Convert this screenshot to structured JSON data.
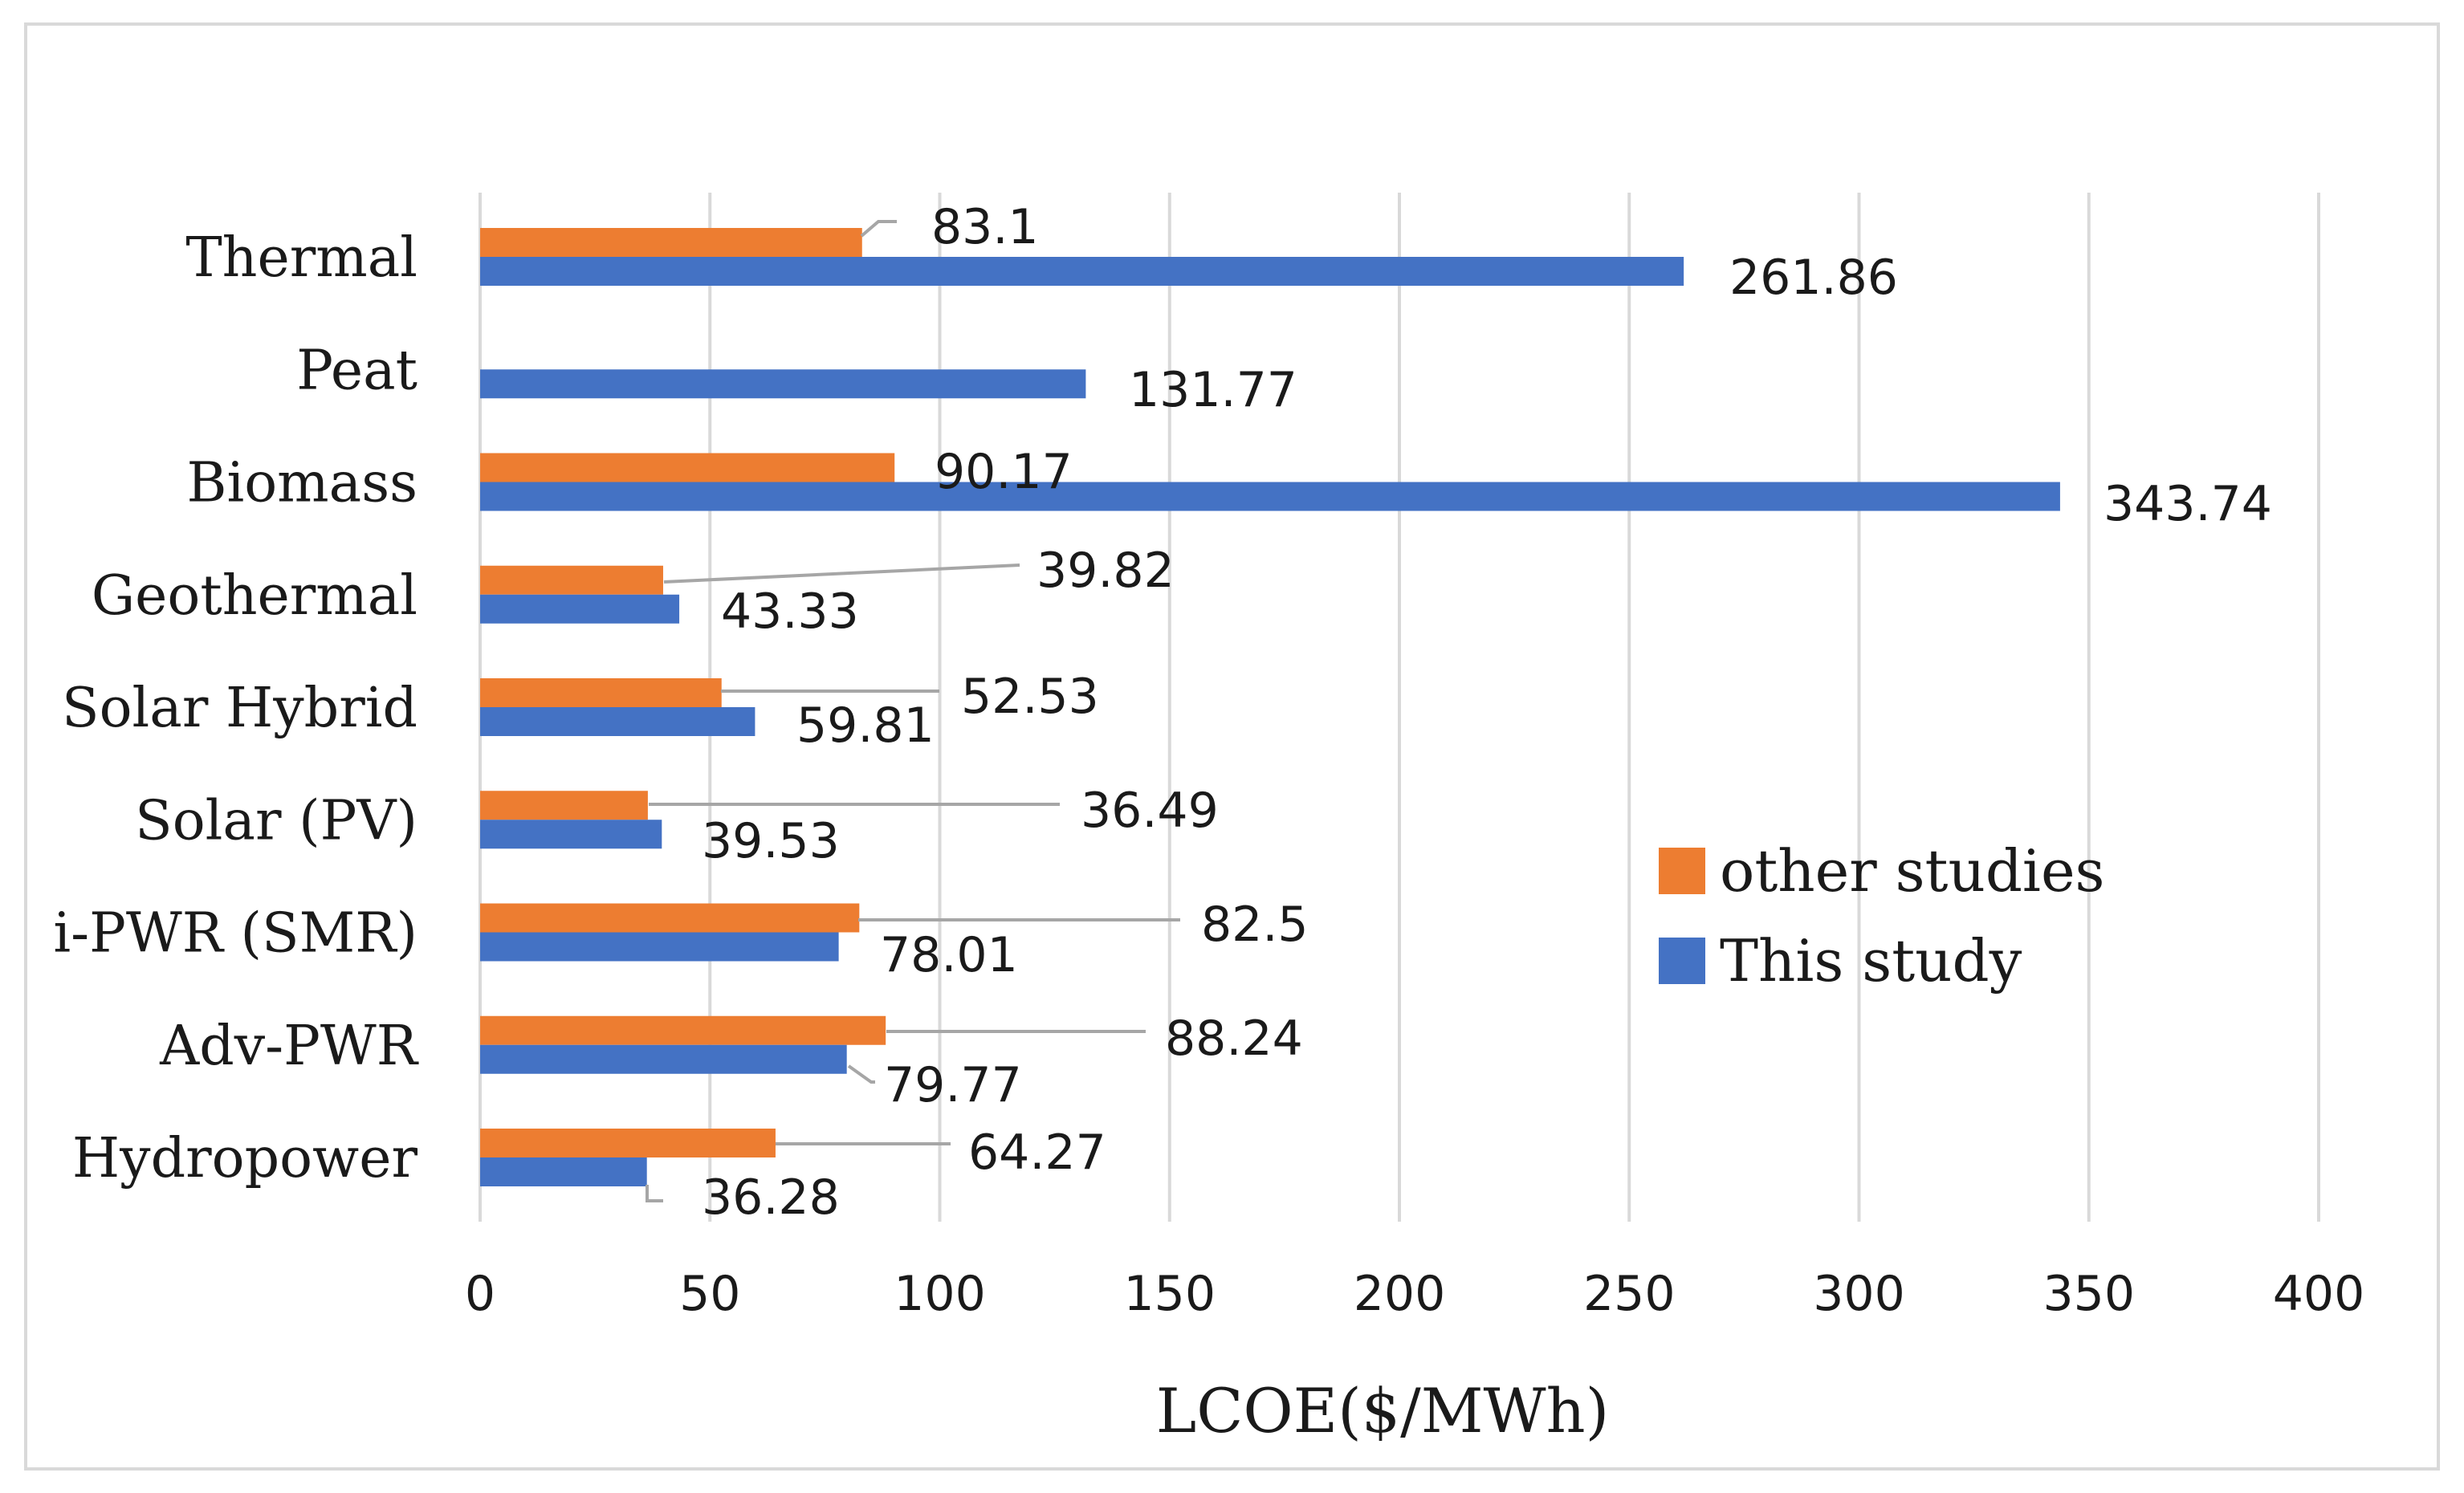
{
  "chart_data": {
    "type": "bar",
    "orientation": "horizontal",
    "title": "",
    "xlabel": "LCOE($/MWh)",
    "ylabel": "",
    "xlim": [
      0,
      400
    ],
    "x_ticks": [
      0,
      50,
      100,
      150,
      200,
      250,
      300,
      350,
      400
    ],
    "grid": "vertical",
    "legend_position": "right",
    "categories": [
      "Thermal",
      "Peat",
      "Biomass",
      "Geothermal",
      "Solar Hybrid",
      "Solar (PV)",
      "i-PWR (SMR)",
      "Adv-PWR",
      "Hydropower"
    ],
    "series": [
      {
        "name": "other studies",
        "color": "#ED7D31",
        "values": [
          83.1,
          null,
          90.17,
          39.82,
          52.53,
          36.49,
          82.5,
          88.24,
          64.27
        ],
        "labels": [
          "83.1",
          "",
          "90.17",
          "39.82",
          "52.53",
          "36.49",
          "82.5",
          "88.24",
          "64.27"
        ]
      },
      {
        "name": "This study",
        "color": "#4472C4",
        "values": [
          261.86,
          131.77,
          343.74,
          43.33,
          59.81,
          39.53,
          78.01,
          79.77,
          36.28
        ],
        "labels": [
          "261.86",
          "131.77",
          "343.74",
          "43.33",
          "59.81",
          "39.53",
          "78.01",
          "79.77",
          "36.28"
        ]
      }
    ],
    "colors": {
      "grid": "#D9D9D9",
      "leader_line": "#A6A6A6",
      "frame": "#D9D9D9"
    }
  }
}
